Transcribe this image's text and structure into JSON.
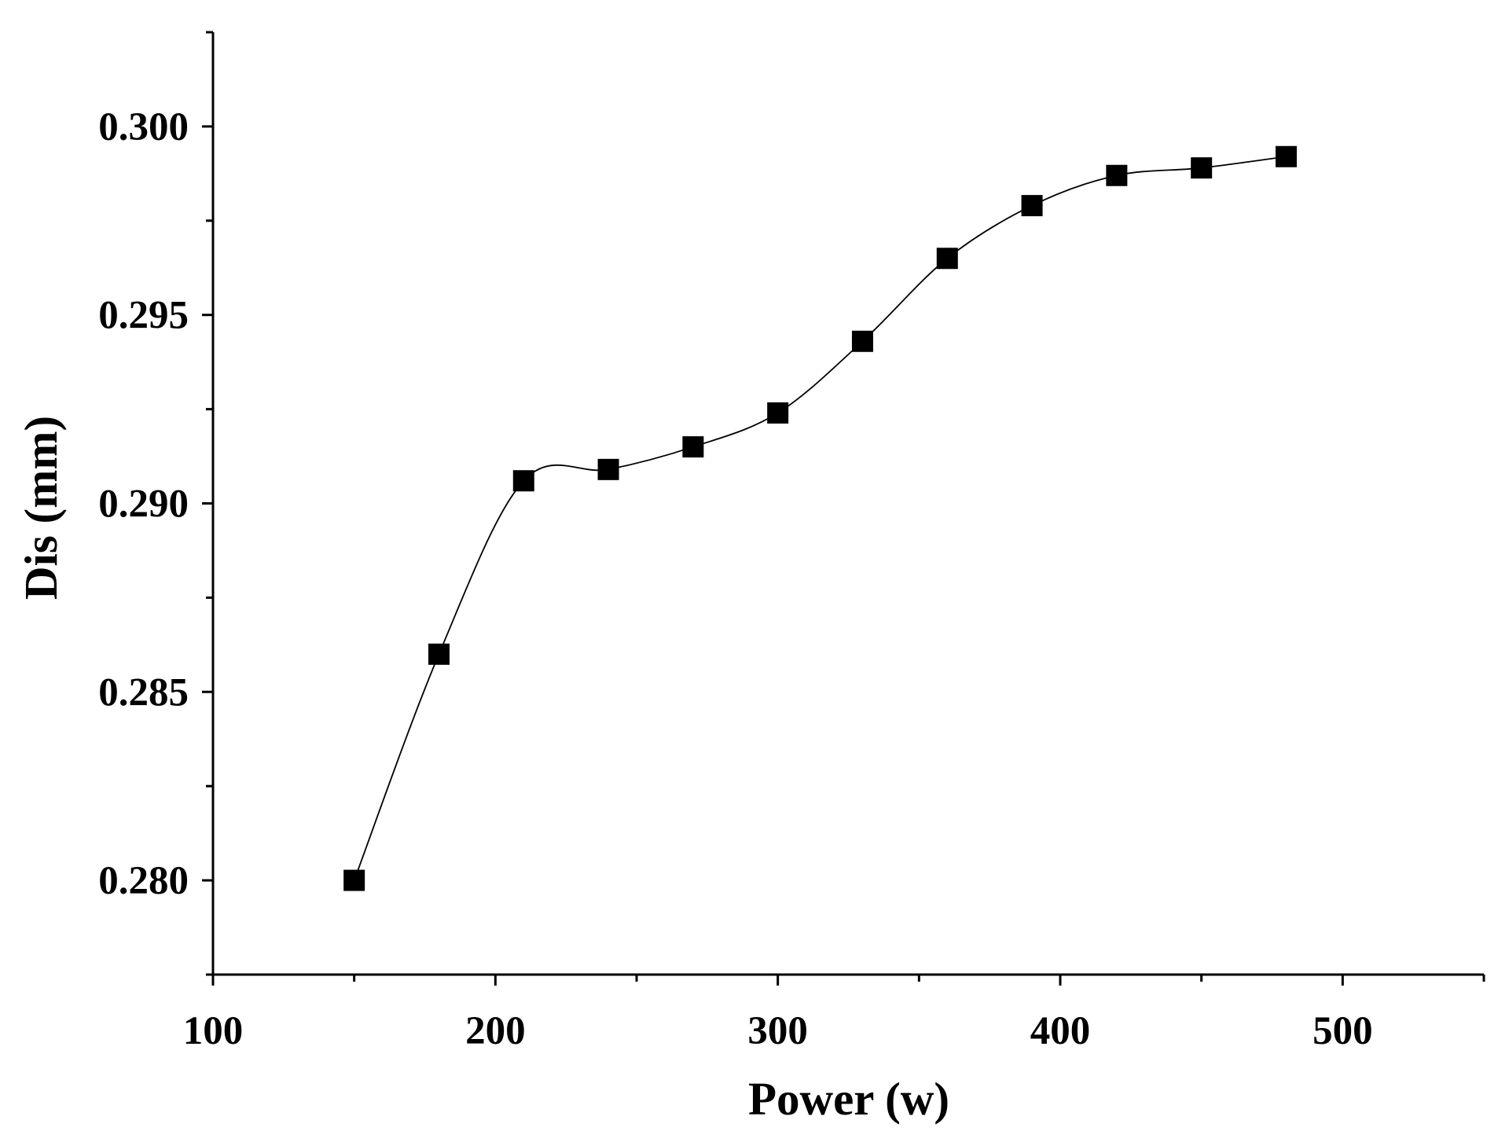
{
  "chart_data": {
    "type": "line",
    "title": "",
    "xlabel": "Power (w)",
    "ylabel": "Dis (mm)",
    "xlim": [
      100,
      550
    ],
    "ylim": [
      0.2775,
      0.3025
    ],
    "x_ticks": [
      100,
      200,
      300,
      400,
      500
    ],
    "x_tick_labels": [
      "100",
      "200",
      "300",
      "400",
      "500"
    ],
    "y_ticks": [
      0.28,
      0.285,
      0.29,
      0.295,
      0.3
    ],
    "y_tick_labels": [
      "0.280",
      "0.285",
      "0.290",
      "0.295",
      "0.300"
    ],
    "grid": false,
    "legend": "none",
    "marker": "square",
    "series": [
      {
        "name": "Dis",
        "color": "#000000",
        "x": [
          150,
          180,
          210,
          240,
          270,
          300,
          330,
          360,
          390,
          420,
          450,
          480
        ],
        "values": [
          0.28,
          0.286,
          0.2906,
          0.2909,
          0.2915,
          0.2924,
          0.2943,
          0.2965,
          0.2979,
          0.2987,
          0.2989,
          0.2992
        ]
      }
    ]
  }
}
